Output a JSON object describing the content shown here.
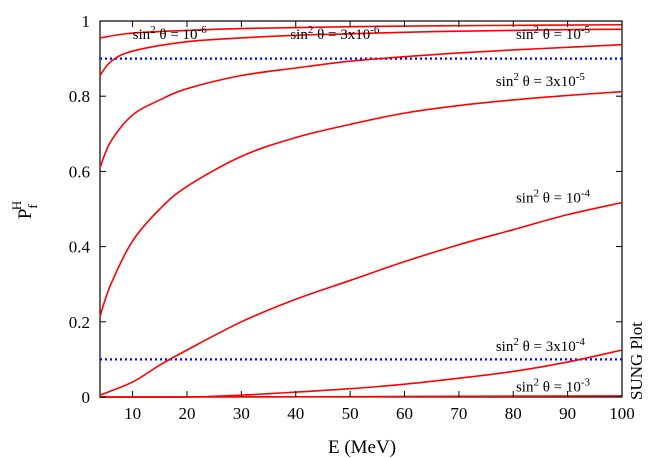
{
  "chart_data": {
    "type": "line",
    "xlabel": "E (MeV)",
    "ylabel": {
      "main": "P",
      "sub": "f",
      "sup": "H"
    },
    "xlim": [
      4,
      100
    ],
    "ylim": [
      0,
      1
    ],
    "xticks": [
      10,
      20,
      30,
      40,
      50,
      60,
      70,
      80,
      90,
      100
    ],
    "yticks": [
      0,
      0.2,
      0.4,
      0.6,
      0.8,
      1
    ],
    "ytick_labels": [
      "0",
      "0.2",
      "0.4",
      "0.6",
      "0.8",
      "1"
    ],
    "grid": false,
    "series": [
      {
        "id": "s1e-6",
        "color": "#ff0000",
        "points": [
          [
            4,
            0.955
          ],
          [
            10,
            0.968
          ],
          [
            20,
            0.975
          ],
          [
            30,
            0.98
          ],
          [
            50,
            0.985
          ],
          [
            75,
            0.988
          ],
          [
            100,
            0.99
          ]
        ]
      },
      {
        "id": "s3e-6",
        "color": "#ff0000",
        "points": [
          [
            4,
            0.855
          ],
          [
            6,
            0.892
          ],
          [
            10,
            0.92
          ],
          [
            20,
            0.945
          ],
          [
            30,
            0.955
          ],
          [
            40,
            0.962
          ],
          [
            50,
            0.966
          ],
          [
            60,
            0.97
          ],
          [
            70,
            0.973
          ],
          [
            80,
            0.975
          ],
          [
            90,
            0.977
          ],
          [
            100,
            0.978
          ]
        ]
      },
      {
        "id": "s1e-5",
        "color": "#ff0000",
        "points": [
          [
            4,
            0.0
          ],
          [
            20,
            0.0
          ],
          [
            30,
            0.005
          ],
          [
            40,
            0.013
          ],
          [
            50,
            0.022
          ],
          [
            60,
            0.034
          ],
          [
            70,
            0.05
          ],
          [
            80,
            0.068
          ],
          [
            90,
            0.093
          ],
          [
            100,
            0.125
          ]
        ]
      },
      {
        "id": "s3e-5",
        "color": "#ff0000",
        "points": [
          [
            4,
            0.61
          ],
          [
            6,
            0.68
          ],
          [
            10,
            0.75
          ],
          [
            15,
            0.79
          ],
          [
            20,
            0.82
          ],
          [
            30,
            0.855
          ],
          [
            40,
            0.875
          ],
          [
            50,
            0.893
          ],
          [
            60,
            0.905
          ],
          [
            70,
            0.915
          ],
          [
            80,
            0.923
          ],
          [
            90,
            0.93
          ],
          [
            100,
            0.937
          ]
        ]
      },
      {
        "id": "s1e-4",
        "color": "#ff0000",
        "points": [
          [
            4,
            0.215
          ],
          [
            6,
            0.3
          ],
          [
            10,
            0.415
          ],
          [
            15,
            0.5
          ],
          [
            20,
            0.56
          ],
          [
            30,
            0.64
          ],
          [
            40,
            0.69
          ],
          [
            50,
            0.725
          ],
          [
            60,
            0.755
          ],
          [
            70,
            0.775
          ],
          [
            80,
            0.79
          ],
          [
            90,
            0.802
          ],
          [
            100,
            0.812
          ]
        ]
      },
      {
        "id": "s3e-4",
        "color": "#ff0000",
        "points": [
          [
            4,
            0.005
          ],
          [
            10,
            0.04
          ],
          [
            15,
            0.085
          ],
          [
            20,
            0.125
          ],
          [
            30,
            0.2
          ],
          [
            40,
            0.26
          ],
          [
            50,
            0.31
          ],
          [
            60,
            0.36
          ],
          [
            70,
            0.405
          ],
          [
            80,
            0.445
          ],
          [
            90,
            0.485
          ],
          [
            100,
            0.517
          ]
        ]
      },
      {
        "id": "s1e-3",
        "color": "#ff0000",
        "points": [
          [
            4,
            0.0
          ],
          [
            50,
            0.001
          ],
          [
            100,
            0.003
          ]
        ]
      }
    ],
    "reference_lines": [
      {
        "y": 0.9,
        "color": "#0000ff",
        "style": "dotted"
      },
      {
        "y": 0.1,
        "color": "#0000ff",
        "style": "dotted"
      }
    ],
    "annotations": [
      {
        "text": "sin",
        "exp": "2",
        "mid": " θ = 10",
        "mant_exp": "-6",
        "at": [
          10,
          0.965
        ]
      },
      {
        "text": "sin",
        "exp": "2",
        "mid": " θ = 3x10",
        "mant_exp": "-6",
        "at": [
          39,
          0.965
        ]
      },
      {
        "text": "sin",
        "exp": "2",
        "mid": " θ = 10",
        "mant_exp": "-5",
        "at": [
          80.5,
          0.965
        ]
      },
      {
        "text": "sin",
        "exp": "2",
        "mid": " θ = 3x10",
        "mant_exp": "-5",
        "at": [
          76.8,
          0.84
        ]
      },
      {
        "text": "sin",
        "exp": "2",
        "mid": " θ = 10",
        "mant_exp": "-4",
        "at": [
          80.5,
          0.53
        ]
      },
      {
        "text": "sin",
        "exp": "2",
        "mid": " θ = 3x10",
        "mant_exp": "-4",
        "at": [
          76.8,
          0.135
        ]
      },
      {
        "text": "sin",
        "exp": "2",
        "mid": " θ = 10",
        "mant_exp": "-3",
        "at": [
          80.5,
          0.028
        ]
      }
    ]
  },
  "watermark": "SUNG Plot"
}
